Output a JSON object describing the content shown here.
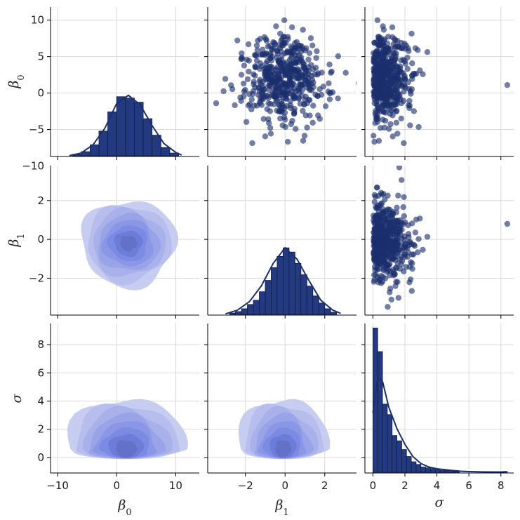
{
  "chart_data": {
    "type": "pairplot",
    "variables": [
      "β0",
      "β1",
      "σ"
    ],
    "axis_labels": {
      "b0": "β",
      "b0_sub": "0",
      "b1": "β",
      "b1_sub": "1",
      "sigma": "σ"
    },
    "ranges": {
      "b0": [
        -10.5,
        14
      ],
      "b1": [
        -3.9,
        3.6
      ],
      "sigma": [
        -1,
        9.5
      ]
    },
    "ticks": {
      "b0": [
        {
          "v": -10,
          "t": "−10"
        },
        {
          "v": -5,
          "t": "−5"
        },
        {
          "v": 0,
          "t": "0"
        },
        {
          "v": 5,
          "t": "5"
        },
        {
          "v": 10,
          "t": "10"
        }
      ],
      "b0_x": [
        {
          "v": -10,
          "t": "−10"
        },
        {
          "v": 0,
          "t": "0"
        },
        {
          "v": 10,
          "t": "10"
        }
      ],
      "b1": [
        {
          "v": -2,
          "t": "−2"
        },
        {
          "v": 0,
          "t": "0"
        },
        {
          "v": 2,
          "t": "2"
        }
      ],
      "sigma_y": [
        {
          "v": 0,
          "t": "0"
        },
        {
          "v": 2,
          "t": "2"
        },
        {
          "v": 4,
          "t": "4"
        },
        {
          "v": 6,
          "t": "6"
        },
        {
          "v": 8,
          "t": "8"
        }
      ],
      "sigma_x": [
        {
          "v": 0,
          "t": "0"
        },
        {
          "v": 2,
          "t": "2"
        },
        {
          "v": 4,
          "t": "4"
        },
        {
          "v": 6,
          "t": "6"
        },
        {
          "v": 8,
          "t": "8"
        }
      ]
    },
    "colors": {
      "marker": "#1b2e6e",
      "bar": "#233a80",
      "kde": [
        "#c4caef",
        "#b6bdec",
        "#a7b0ea",
        "#98a3e8",
        "#8996e6",
        "#7a89e3",
        "#6d7ad8",
        "#6371c6"
      ]
    },
    "hist_b0": {
      "edges": [
        -7.5,
        -6,
        -4.5,
        -3,
        -1.5,
        0,
        1.5,
        3,
        4.5,
        6,
        7.5,
        9,
        10.5
      ],
      "counts": [
        2,
        6,
        16,
        36,
        64,
        86,
        84,
        78,
        54,
        30,
        12,
        4
      ],
      "kde": [
        [
          -8,
          0.3
        ],
        [
          -6,
          4
        ],
        [
          -4,
          16
        ],
        [
          -2,
          40
        ],
        [
          0,
          76
        ],
        [
          2,
          88
        ],
        [
          4,
          74
        ],
        [
          6,
          44
        ],
        [
          8,
          18
        ],
        [
          10,
          5
        ],
        [
          11,
          1
        ]
      ]
    },
    "hist_b1": {
      "edges": [
        -2.8,
        -2.5,
        -2.2,
        -1.9,
        -1.6,
        -1.3,
        -1.0,
        -0.7,
        -0.4,
        -0.1,
        0.2,
        0.5,
        0.8,
        1.1,
        1.4,
        1.7,
        2.0,
        2.3,
        2.6
      ],
      "counts": [
        2,
        4,
        8,
        14,
        20,
        32,
        48,
        66,
        82,
        94,
        88,
        72,
        56,
        40,
        26,
        16,
        8,
        3
      ],
      "kde": [
        [
          -3,
          0.8
        ],
        [
          -2.4,
          6
        ],
        [
          -1.8,
          18
        ],
        [
          -1.2,
          40
        ],
        [
          -0.6,
          72
        ],
        [
          0,
          94
        ],
        [
          0.6,
          78
        ],
        [
          1.2,
          48
        ],
        [
          1.8,
          20
        ],
        [
          2.4,
          6
        ],
        [
          2.8,
          1.5
        ]
      ]
    },
    "hist_sigma": {
      "edges": [
        0,
        0.3,
        0.6,
        0.9,
        1.2,
        1.5,
        1.8,
        2.1,
        2.4,
        2.7,
        3.0,
        3.3,
        3.6,
        3.9,
        4.2,
        4.5,
        4.8,
        5.1,
        5.4,
        5.7,
        6.0,
        6.3,
        6.6,
        6.9,
        7.2,
        7.5,
        7.8,
        8.1,
        8.4
      ],
      "counts": [
        165,
        138,
        78,
        66,
        42,
        36,
        26,
        18,
        12,
        9,
        6,
        5,
        4,
        3,
        2,
        2,
        1,
        1,
        0,
        0,
        0,
        0,
        0,
        0,
        0,
        0,
        0,
        1
      ],
      "kde": [
        [
          0,
          68
        ],
        [
          0.3,
          108
        ],
        [
          0.6,
          104
        ],
        [
          1,
          74
        ],
        [
          1.5,
          50
        ],
        [
          2,
          32
        ],
        [
          2.5,
          18
        ],
        [
          3,
          10
        ],
        [
          3.5,
          6
        ],
        [
          4,
          4
        ],
        [
          4.5,
          3
        ],
        [
          5,
          2
        ],
        [
          5.5,
          1.2
        ],
        [
          6,
          0.8
        ],
        [
          7,
          0.4
        ],
        [
          8.4,
          0.3
        ]
      ]
    },
    "kde_b1_b0": {
      "center": [
        2,
        -0.2
      ],
      "spread": [
        5,
        1.4
      ]
    },
    "kde_sigma_b0": {
      "center": [
        1.6,
        0.6
      ],
      "spread": [
        6.2,
        2.3
      ]
    },
    "kde_sigma_b1": {
      "center": [
        -0.1,
        0.6
      ],
      "spread": [
        1.4,
        2.3
      ]
    },
    "n_points": 500,
    "outlier": {
      "sigma": 8.4,
      "b0": 1.1,
      "b1": 0.8
    }
  }
}
